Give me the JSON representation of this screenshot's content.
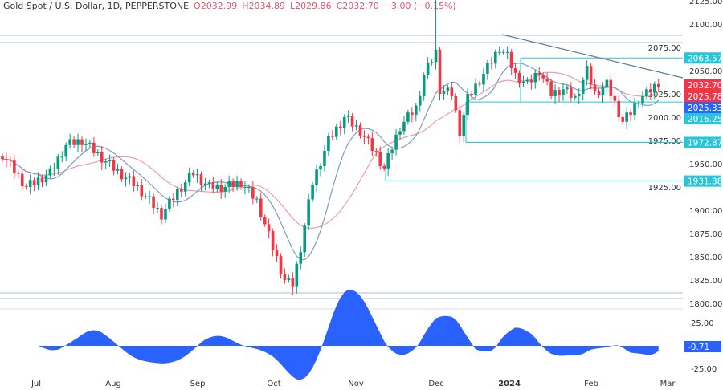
{
  "header": {
    "symbol": "Gold Spot / U.S. Dollar, 1D, PEPPERSTONE",
    "open": "O2032.99",
    "high": "H2034.89",
    "low": "L2029.86",
    "close": "C2032.70",
    "change": "−3.00 (−0.15%)"
  },
  "chart_data": {
    "type": "candlestick",
    "ylim": [
      1795,
      2130
    ],
    "y_ticks": [
      "2125.00",
      "2100.00",
      "2075.00",
      "2050.00",
      "2025.00",
      "2000.00",
      "1975.00",
      "1950.00",
      "1925.00",
      "1900.00",
      "1875.00",
      "1850.00",
      "1825.00",
      "1800.00"
    ],
    "x_ticks": [
      "Jul",
      "Aug",
      "Sep",
      "Oct",
      "Nov",
      "Dec",
      "2024",
      "Feb",
      "Mar"
    ],
    "approx_close_path": [
      [
        0,
        1960
      ],
      [
        6,
        1925
      ],
      [
        12,
        1940
      ],
      [
        16,
        1970
      ],
      [
        20,
        1975
      ],
      [
        24,
        1960
      ],
      [
        28,
        1945
      ],
      [
        34,
        1925
      ],
      [
        40,
        1895
      ],
      [
        44,
        1920
      ],
      [
        48,
        1940
      ],
      [
        52,
        1925
      ],
      [
        56,
        1925
      ],
      [
        60,
        1930
      ],
      [
        64,
        1910
      ],
      [
        68,
        1860
      ],
      [
        71,
        1825
      ],
      [
        73,
        1820
      ],
      [
        75,
        1860
      ],
      [
        78,
        1930
      ],
      [
        82,
        1975
      ],
      [
        86,
        2000
      ],
      [
        90,
        1985
      ],
      [
        94,
        1960
      ],
      [
        96,
        1945
      ],
      [
        100,
        1990
      ],
      [
        104,
        2010
      ],
      [
        106,
        2045
      ],
      [
        109,
        2070
      ],
      [
        110,
        2030
      ],
      [
        113,
        2025
      ],
      [
        115,
        1985
      ],
      [
        117,
        2020
      ],
      [
        120,
        2040
      ],
      [
        123,
        2060
      ],
      [
        125,
        2075
      ],
      [
        127,
        2065
      ],
      [
        129,
        2045
      ],
      [
        132,
        2035
      ],
      [
        135,
        2050
      ],
      [
        138,
        2025
      ],
      [
        141,
        2030
      ],
      [
        144,
        2020
      ],
      [
        147,
        2050
      ],
      [
        149,
        2025
      ],
      [
        152,
        2035
      ],
      [
        154,
        2015
      ],
      [
        156,
        1995
      ],
      [
        158,
        2005
      ],
      [
        160,
        2020
      ],
      [
        162,
        2025
      ],
      [
        164,
        2033
      ],
      [
        165,
        2032.7
      ]
    ],
    "levels": [
      {
        "label": "2063.57",
        "value": 2063.57
      },
      {
        "label": "2016.25",
        "value": 2016.25
      },
      {
        "label": "1972.87",
        "value": 1972.87
      },
      {
        "label": "1931.38",
        "value": 1931.38
      }
    ],
    "price_badges": [
      {
        "label": "2032.70",
        "color": "#f23645"
      },
      {
        "label": "2025.78",
        "color": "#f23645"
      },
      {
        "label": "2025.33",
        "color": "#2962ff"
      }
    ],
    "oscillator": {
      "y_ticks": [
        "25.00",
        "-25.00"
      ],
      "current": "-0.71",
      "color": "#2962ff"
    },
    "colors": {
      "up": "#089981",
      "down": "#f23645",
      "ma_fast": "#7e9cc4",
      "ma_slow": "#e8a0a0",
      "levels": "#26c6da"
    }
  }
}
